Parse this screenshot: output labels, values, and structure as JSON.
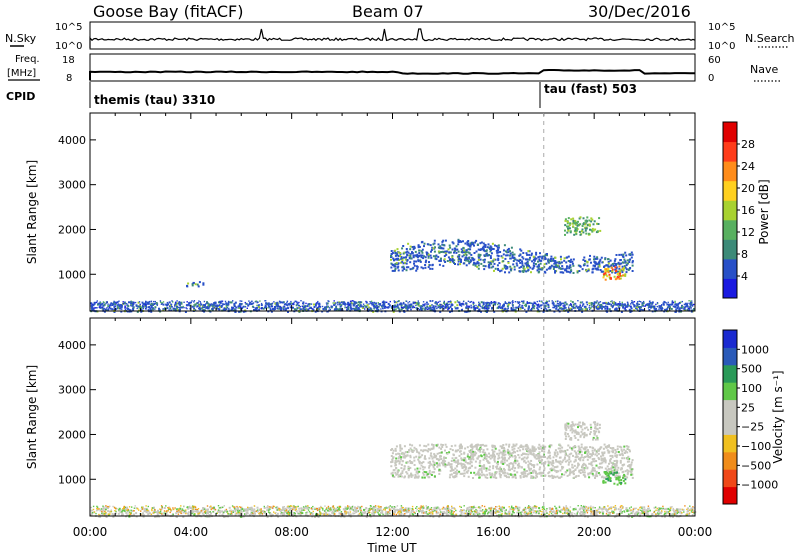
{
  "header": {
    "station": "Goose Bay (fitACF)",
    "beam": "Beam 07",
    "date": "30/Dec/2016"
  },
  "top_panels": {
    "nsky_label": "N.Sky",
    "nsky_ticks": [
      "10^5",
      "10^0"
    ],
    "nsearch_label": "N.Search",
    "nsearch_ticks": [
      "10^5",
      "10^0"
    ],
    "freq_label_1": "Freq.",
    "freq_label_2": "[MHz]",
    "freq_ticks": [
      "18",
      "8"
    ],
    "nave_label": "Nave",
    "nave_ticks": [
      "60",
      "0"
    ],
    "cpid_label": "CPID",
    "cpid_segments": [
      {
        "label": "themis (tau) 3310",
        "start_hour": 0,
        "end_hour": 18
      },
      {
        "label": "tau (fast) 503",
        "start_hour": 18,
        "end_hour": 24
      }
    ]
  },
  "chart_data": [
    {
      "type": "heatmap",
      "title": "",
      "ylabel": "Slant Range [km]",
      "xlim_hours": [
        0,
        24
      ],
      "ylim_km": [
        180,
        4600
      ],
      "y_ticks": [
        "1000",
        "2000",
        "3000",
        "4000"
      ],
      "colorbar_label": "Power [dB]",
      "colorbar_ticks": [
        "4",
        "8",
        "12",
        "16",
        "20",
        "24",
        "28"
      ],
      "colorbar_colors": [
        "#1a1ae0",
        "#2850c8",
        "#3c8a78",
        "#58b060",
        "#a8d230",
        "#ffd020",
        "#ff8c1a",
        "#ff3c1a",
        "#e00000"
      ],
      "regions": [
        {
          "x0": 11.9,
          "x1": 21.5,
          "y0": 1050,
          "y1": 1800,
          "level": "low-mid"
        },
        {
          "x0": 20.3,
          "x1": 21.2,
          "y0": 900,
          "y1": 1200,
          "level": "high"
        },
        {
          "x0": 18.8,
          "x1": 20.2,
          "y0": 1900,
          "y1": 2300,
          "level": "mid"
        },
        {
          "x0": 3.8,
          "x1": 4.5,
          "y0": 750,
          "y1": 850,
          "level": "low"
        },
        {
          "x0": 0,
          "x1": 24,
          "y0": 180,
          "y1": 400,
          "level": "ground-scatter"
        }
      ]
    },
    {
      "type": "heatmap",
      "title": "",
      "ylabel": "Slant Range [km]",
      "xlim_hours": [
        0,
        24
      ],
      "ylim_km": [
        180,
        4600
      ],
      "y_ticks": [
        "1000",
        "2000",
        "3000",
        "4000"
      ],
      "colorbar_label": "Velocity [m s⁻¹]",
      "colorbar_ticks": [
        "1000",
        "500",
        "100",
        "25",
        "−25",
        "−100",
        "−500",
        "−1000"
      ],
      "colorbar_colors": [
        "#1a2ad0",
        "#2a5ab8",
        "#2a9a58",
        "#60c848",
        "#c8c8c0",
        "#c8c8c0",
        "#f0c020",
        "#f08c1a",
        "#f04818",
        "#e00000"
      ],
      "regions": [
        {
          "x0": 11.9,
          "x1": 21.5,
          "y0": 1050,
          "y1": 1800,
          "level": "near-zero"
        },
        {
          "x0": 20.3,
          "x1": 21.2,
          "y0": 900,
          "y1": 1200,
          "level": "positive-100"
        },
        {
          "x0": 18.8,
          "x1": 20.2,
          "y0": 1900,
          "y1": 2300,
          "level": "near-zero"
        },
        {
          "x0": 0,
          "x1": 24,
          "y0": 180,
          "y1": 400,
          "level": "mixed"
        }
      ]
    }
  ],
  "x_axis": {
    "ticks": [
      "00:00",
      "04:00",
      "08:00",
      "12:00",
      "16:00",
      "20:00",
      "00:00"
    ],
    "label": "Time UT"
  }
}
